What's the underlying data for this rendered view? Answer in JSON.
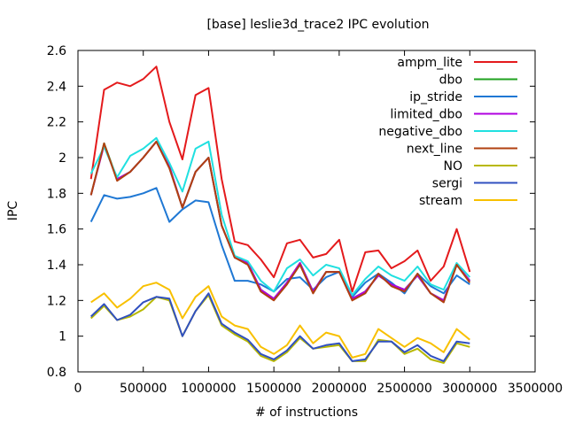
{
  "chart_data": {
    "type": "line",
    "title": "[base] leslie3d_trace2 IPC evolution",
    "xlabel": "# of instructions",
    "ylabel": "IPC",
    "xlim": [
      0,
      3500000
    ],
    "ylim": [
      0.8,
      2.6
    ],
    "x_ticks": [
      0,
      500000,
      1000000,
      1500000,
      2000000,
      2500000,
      3000000,
      3500000
    ],
    "x_tick_labels": [
      "0",
      "500000",
      "1000000",
      "1500000",
      "2000000",
      "2500000",
      "3000000",
      "3500000"
    ],
    "y_ticks": [
      0.8,
      1.0,
      1.2,
      1.4,
      1.6,
      1.8,
      2.0,
      2.2,
      2.4,
      2.6
    ],
    "y_tick_labels": [
      "0.8",
      "1",
      "1.2",
      "1.4",
      "1.6",
      "1.8",
      "2",
      "2.2",
      "2.4",
      "2.6"
    ],
    "grid": false,
    "legend_position": "top-right",
    "x": [
      100000,
      200000,
      300000,
      400000,
      500000,
      600000,
      700000,
      800000,
      900000,
      1000000,
      1100000,
      1200000,
      1300000,
      1400000,
      1500000,
      1600000,
      1700000,
      1800000,
      1900000,
      2000000,
      2100000,
      2200000,
      2300000,
      2400000,
      2500000,
      2600000,
      2700000,
      2800000,
      2900000,
      3000000
    ],
    "series": [
      {
        "name": "ampm_lite",
        "color": "#e41a1c",
        "values": [
          1.88,
          2.38,
          2.42,
          2.4,
          2.44,
          2.51,
          2.2,
          1.99,
          2.35,
          2.39,
          1.88,
          1.53,
          1.51,
          1.43,
          1.33,
          1.52,
          1.54,
          1.44,
          1.46,
          1.54,
          1.25,
          1.47,
          1.48,
          1.38,
          1.42,
          1.48,
          1.31,
          1.39,
          1.6,
          1.36
        ]
      },
      {
        "name": "dbo",
        "color": "#1fa21f",
        "values": [
          1.79,
          2.08,
          1.88,
          1.92,
          2.0,
          2.09,
          1.95,
          1.72,
          1.92,
          2.0,
          1.62,
          1.44,
          1.41,
          1.26,
          1.21,
          1.3,
          1.41,
          1.25,
          1.36,
          1.36,
          1.21,
          1.25,
          1.34,
          1.29,
          1.26,
          1.34,
          1.24,
          1.2,
          1.4,
          1.31
        ]
      },
      {
        "name": "ip_stride",
        "color": "#1f78d4",
        "values": [
          1.64,
          1.79,
          1.77,
          1.78,
          1.8,
          1.83,
          1.64,
          1.71,
          1.76,
          1.75,
          1.51,
          1.31,
          1.31,
          1.29,
          1.25,
          1.32,
          1.33,
          1.26,
          1.33,
          1.36,
          1.22,
          1.3,
          1.35,
          1.3,
          1.24,
          1.35,
          1.28,
          1.24,
          1.34,
          1.29
        ]
      },
      {
        "name": "limited_dbo",
        "color": "#b000e0",
        "values": [
          1.79,
          2.07,
          1.88,
          1.92,
          2.0,
          2.09,
          1.95,
          1.72,
          1.92,
          2.0,
          1.62,
          1.44,
          1.41,
          1.26,
          1.21,
          1.3,
          1.41,
          1.25,
          1.36,
          1.36,
          1.21,
          1.25,
          1.34,
          1.29,
          1.26,
          1.34,
          1.24,
          1.2,
          1.4,
          1.31
        ]
      },
      {
        "name": "negative_dbo",
        "color": "#20e0e0",
        "values": [
          1.91,
          2.06,
          1.89,
          2.01,
          2.05,
          2.11,
          1.97,
          1.81,
          2.05,
          2.09,
          1.68,
          1.45,
          1.42,
          1.31,
          1.25,
          1.38,
          1.43,
          1.34,
          1.4,
          1.38,
          1.23,
          1.32,
          1.39,
          1.34,
          1.31,
          1.39,
          1.29,
          1.26,
          1.41,
          1.33
        ]
      },
      {
        "name": "next_line",
        "color": "#b04010",
        "values": [
          1.79,
          2.08,
          1.87,
          1.92,
          2.0,
          2.09,
          1.94,
          1.72,
          1.92,
          2.0,
          1.62,
          1.44,
          1.4,
          1.25,
          1.2,
          1.29,
          1.4,
          1.24,
          1.36,
          1.36,
          1.2,
          1.24,
          1.35,
          1.28,
          1.25,
          1.35,
          1.24,
          1.19,
          1.4,
          1.3
        ]
      },
      {
        "name": "NO",
        "color": "#b8b800",
        "values": [
          1.1,
          1.17,
          1.09,
          1.11,
          1.15,
          1.22,
          1.2,
          1.0,
          1.14,
          1.23,
          1.06,
          1.01,
          0.97,
          0.89,
          0.86,
          0.91,
          0.99,
          0.93,
          0.94,
          0.95,
          0.86,
          0.86,
          0.98,
          0.97,
          0.9,
          0.93,
          0.87,
          0.85,
          0.96,
          0.94
        ]
      },
      {
        "name": "sergi",
        "color": "#3050c0",
        "values": [
          1.11,
          1.18,
          1.09,
          1.12,
          1.19,
          1.22,
          1.21,
          1.0,
          1.14,
          1.24,
          1.07,
          1.02,
          0.98,
          0.9,
          0.87,
          0.92,
          1.0,
          0.93,
          0.95,
          0.96,
          0.86,
          0.87,
          0.97,
          0.97,
          0.91,
          0.95,
          0.89,
          0.86,
          0.97,
          0.96
        ]
      },
      {
        "name": "stream",
        "color": "#f8c000",
        "values": [
          1.19,
          1.24,
          1.16,
          1.21,
          1.28,
          1.3,
          1.26,
          1.1,
          1.22,
          1.28,
          1.11,
          1.06,
          1.04,
          0.94,
          0.9,
          0.95,
          1.06,
          0.96,
          1.02,
          1.0,
          0.88,
          0.9,
          1.04,
          0.99,
          0.94,
          0.99,
          0.96,
          0.91,
          1.04,
          0.98
        ]
      }
    ]
  }
}
